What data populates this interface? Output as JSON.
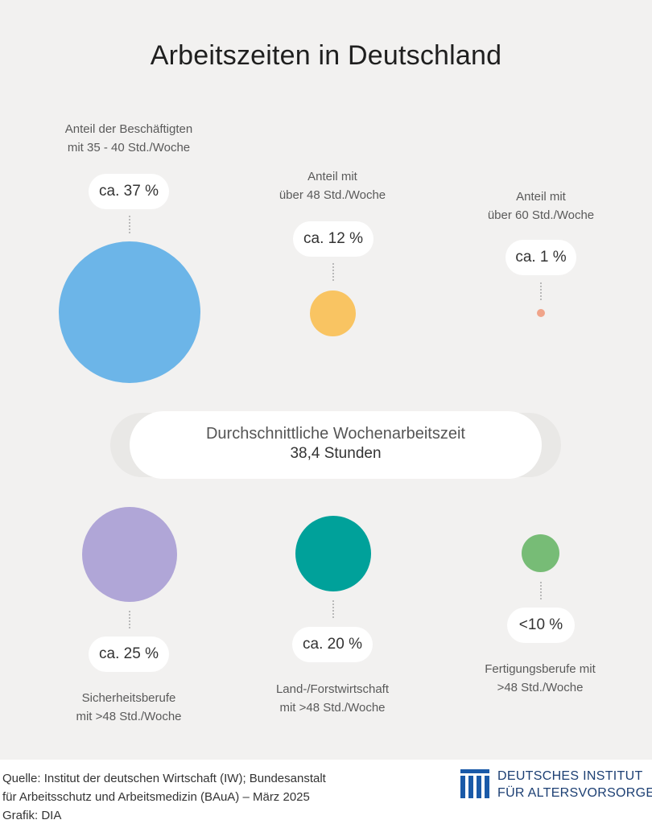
{
  "title": "Arbeitszeiten in Deutschland",
  "chart_data": {
    "type": "bubble",
    "top_row": [
      {
        "label_lines": [
          "Anteil der Beschäftigten",
          "mit 35 - 40 Std./Woche"
        ],
        "value_label": "ca. 37 %",
        "value": 37,
        "color": "#6cb5e8"
      },
      {
        "label_lines": [
          "Anteil mit",
          "über 48 Std./Woche"
        ],
        "value_label": "ca. 12 %",
        "value": 12,
        "color": "#f9c462"
      },
      {
        "label_lines": [
          "Anteil mit",
          "über 60 Std./Woche"
        ],
        "value_label": "ca. 1 %",
        "value": 1,
        "color": "#f0a48a"
      }
    ],
    "average": {
      "label": "Durchschnittliche Wochenarbeitszeit",
      "value_label": "38,4 Stunden",
      "value": 38.4
    },
    "bottom_row": [
      {
        "label_lines": [
          "Sicherheitsberufe",
          "mit >48 Std./Woche"
        ],
        "value_label": "ca. 25 %",
        "value": 25,
        "color": "#b0a6d7"
      },
      {
        "label_lines": [
          "Land-/Forstwirtschaft",
          "mit >48 Std./Woche"
        ],
        "value_label": "ca. 20 %",
        "value": 20,
        "color": "#00a19a"
      },
      {
        "label_lines": [
          "Fertigungsberufe mit",
          ">48 Std./Woche"
        ],
        "value_label": "<10 %",
        "value": 10,
        "color": "#77bc76"
      }
    ]
  },
  "footer": {
    "source_lines": [
      "Quelle: Institut der deutschen Wirtschaft (IW); Bundesanstalt",
      "für Arbeitsschutz und Arbeitsmedizin (BAuA) – März 2025",
      "Grafik: DIA"
    ],
    "logo_lines": [
      "DEUTSCHES INSTITUT",
      "FÜR ALTERSVORSORGE"
    ],
    "logo_color": "#1a5aa8"
  }
}
